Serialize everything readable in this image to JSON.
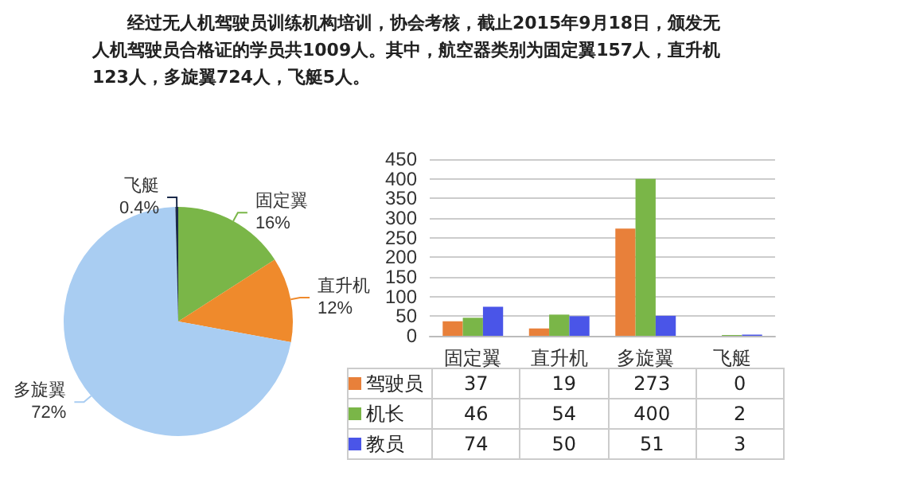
{
  "chart_data": [
    {
      "type": "pie",
      "title": "经过无人机驾驶员训练机构培训，协会考核，截止2015年9月18日，颁发无人机驾驶员合格证的学员共1009人。其中，航空器类别为固定翼157人，直升机123人，多旋翼724人，飞艇5人。",
      "categories": [
        "固定翼",
        "直升机",
        "多旋翼",
        "飞艇"
      ],
      "values": [
        16,
        12,
        72,
        0.4
      ],
      "colors": [
        "#7ab648",
        "#ef8a2c",
        "#a9cdf2",
        "#1b2a4a"
      ],
      "value_labels": [
        "16%",
        "12%",
        "72%",
        "0.4%"
      ]
    },
    {
      "type": "bar",
      "categories": [
        "固定翼",
        "直升机",
        "多旋翼",
        "飞艇"
      ],
      "series": [
        {
          "name": "驾驶员",
          "color": "#e8803a",
          "values": [
            37,
            19,
            273,
            0
          ]
        },
        {
          "name": "机长",
          "color": "#7ab648",
          "values": [
            46,
            54,
            400,
            2
          ]
        },
        {
          "name": "教员",
          "color": "#4a55e8",
          "values": [
            74,
            50,
            51,
            3
          ]
        }
      ],
      "ylim": [
        0,
        450
      ],
      "yticks": [
        0,
        50,
        100,
        150,
        200,
        250,
        300,
        350,
        400,
        450
      ],
      "grid": "y",
      "data_labels": true,
      "legend": "bottom left"
    }
  ]
}
